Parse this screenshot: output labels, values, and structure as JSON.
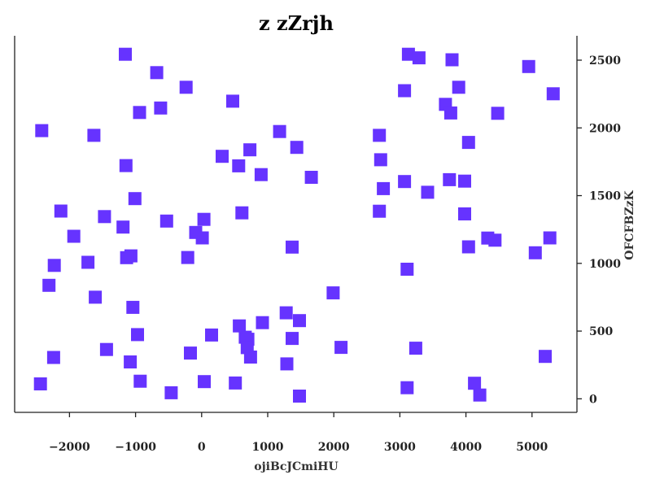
{
  "chart_data": {
    "type": "scatter",
    "title": "z zZrjh",
    "xlabel": "ojiBcJCmiHU",
    "ylabel": "OFCFBZzK",
    "y_axis_side": "right",
    "xlim": [
      -2830,
      5680
    ],
    "ylim": [
      -100,
      2680
    ],
    "x_ticks": [
      -2000,
      -1000,
      0,
      1000,
      2000,
      3000,
      4000,
      5000
    ],
    "x_tick_labels": [
      "−2000",
      "−1000",
      "0",
      "1000",
      "2000",
      "3000",
      "4000",
      "5000"
    ],
    "y_ticks": [
      0,
      500,
      1000,
      1500,
      2000,
      2500
    ],
    "y_tick_labels": [
      "0",
      "500",
      "1000",
      "1500",
      "2000",
      "2500"
    ],
    "grid": false,
    "marker": "square",
    "color": "#6633ff",
    "points": [
      [
        -1155,
        2544
      ],
      [
        -680,
        2408
      ],
      [
        -235,
        2300
      ],
      [
        -940,
        2114
      ],
      [
        -620,
        2147
      ],
      [
        470,
        2197
      ],
      [
        -2420,
        1980
      ],
      [
        -1630,
        1945
      ],
      [
        1180,
        1973
      ],
      [
        1440,
        1856
      ],
      [
        730,
        1838
      ],
      [
        310,
        1790
      ],
      [
        560,
        1720
      ],
      [
        -1145,
        1722
      ],
      [
        900,
        1655
      ],
      [
        1660,
        1635
      ],
      [
        -1010,
        1478
      ],
      [
        -2130,
        1386
      ],
      [
        -1470,
        1345
      ],
      [
        -1190,
        1268
      ],
      [
        610,
        1373
      ],
      [
        -530,
        1312
      ],
      [
        35,
        1325
      ],
      [
        -90,
        1228
      ],
      [
        10,
        1188
      ],
      [
        -1935,
        1200
      ],
      [
        -1070,
        1055
      ],
      [
        -1135,
        1042
      ],
      [
        -1720,
        1008
      ],
      [
        -2230,
        985
      ],
      [
        -210,
        1043
      ],
      [
        1370,
        1120
      ],
      [
        -2310,
        838
      ],
      [
        -1610,
        750
      ],
      [
        -1040,
        675
      ],
      [
        1990,
        782
      ],
      [
        1280,
        635
      ],
      [
        1480,
        577
      ],
      [
        920,
        562
      ],
      [
        570,
        538
      ],
      [
        -970,
        474
      ],
      [
        150,
        471
      ],
      [
        1370,
        446
      ],
      [
        660,
        455
      ],
      [
        700,
        440
      ],
      [
        690,
        378
      ],
      [
        740,
        308
      ],
      [
        2110,
        380
      ],
      [
        -1440,
        364
      ],
      [
        -2240,
        305
      ],
      [
        -1080,
        272
      ],
      [
        -170,
        338
      ],
      [
        1290,
        258
      ],
      [
        -2440,
        110
      ],
      [
        -930,
        130
      ],
      [
        40,
        127
      ],
      [
        510,
        117
      ],
      [
        -460,
        45
      ],
      [
        1480,
        20
      ],
      [
        3130,
        2544
      ],
      [
        3290,
        2517
      ],
      [
        3790,
        2503
      ],
      [
        4950,
        2453
      ],
      [
        3070,
        2275
      ],
      [
        3890,
        2300
      ],
      [
        5320,
        2252
      ],
      [
        3690,
        2174
      ],
      [
        3770,
        2110
      ],
      [
        4480,
        2108
      ],
      [
        2690,
        1945
      ],
      [
        4040,
        1893
      ],
      [
        2710,
        1765
      ],
      [
        3070,
        1604
      ],
      [
        3750,
        1618
      ],
      [
        3980,
        1607
      ],
      [
        2750,
        1552
      ],
      [
        3420,
        1525
      ],
      [
        2690,
        1385
      ],
      [
        3980,
        1365
      ],
      [
        4330,
        1187
      ],
      [
        4440,
        1171
      ],
      [
        5270,
        1188
      ],
      [
        4040,
        1122
      ],
      [
        5050,
        1078
      ],
      [
        3110,
        957
      ],
      [
        3240,
        374
      ],
      [
        5200,
        313
      ],
      [
        3110,
        82
      ],
      [
        4130,
        115
      ],
      [
        4210,
        28
      ]
    ]
  }
}
